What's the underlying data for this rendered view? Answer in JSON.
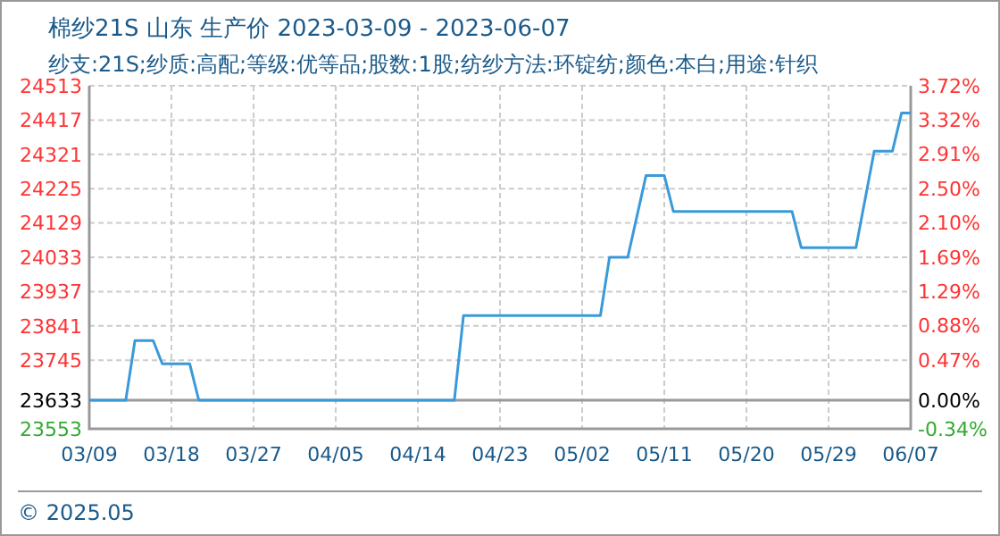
{
  "chart_data": {
    "type": "line",
    "title": "棉纱21S 山东 生产价 2023-03-09 - 2023-06-07",
    "subtitle": "纱支:21S;纱质:高配;等级:优等品;股数:1股;纺纱方法:环锭纺;颜色:本白;用途:针织",
    "x": [
      "2023-03-09",
      "2023-03-13",
      "2023-03-14",
      "2023-03-16",
      "2023-03-17",
      "2023-03-20",
      "2023-03-21",
      "2023-04-18",
      "2023-04-19",
      "2023-05-04",
      "2023-05-05",
      "2023-05-07",
      "2023-05-09",
      "2023-05-11",
      "2023-05-12",
      "2023-05-25",
      "2023-05-26",
      "2023-06-01",
      "2023-06-03",
      "2023-06-05",
      "2023-06-06",
      "2023-06-07"
    ],
    "series": [
      {
        "color": "#3a9ad9",
        "values": [
          23633,
          23633,
          23800,
          23800,
          23735,
          23735,
          23633,
          23633,
          23870,
          23870,
          24033,
          24033,
          24262,
          24262,
          24161,
          24161,
          24060,
          24060,
          24330,
          24330,
          24437,
          24437
        ]
      }
    ],
    "xlim": [
      "2023-03-09",
      "2023-06-07"
    ],
    "xticks": [
      {
        "value": "2023-03-09",
        "label": "03/09"
      },
      {
        "value": "2023-03-18",
        "label": "03/18"
      },
      {
        "value": "2023-03-27",
        "label": "03/27"
      },
      {
        "value": "2023-04-05",
        "label": "04/05"
      },
      {
        "value": "2023-04-14",
        "label": "04/14"
      },
      {
        "value": "2023-04-23",
        "label": "04/23"
      },
      {
        "value": "2023-05-02",
        "label": "05/02"
      },
      {
        "value": "2023-05-11",
        "label": "05/11"
      },
      {
        "value": "2023-05-20",
        "label": "05/20"
      },
      {
        "value": "2023-05-29",
        "label": "05/29"
      },
      {
        "value": "2023-06-07",
        "label": "06/07"
      }
    ],
    "ylim": [
      23553,
      24513
    ],
    "yticks": [
      23553,
      23633,
      23745,
      23841,
      23937,
      24033,
      24129,
      24225,
      24321,
      24417,
      24513
    ],
    "y2lim": [
      -0.34,
      3.72
    ],
    "y2ticks": [
      {
        "value": -0.34,
        "label": "-0.34%"
      },
      {
        "value": 0,
        "label": "0.00%"
      },
      {
        "value": 0.47,
        "label": "0.47%"
      },
      {
        "value": 0.88,
        "label": "0.88%"
      },
      {
        "value": 1.29,
        "label": "1.29%"
      },
      {
        "value": 1.69,
        "label": "1.69%"
      },
      {
        "value": 2.1,
        "label": "2.10%"
      },
      {
        "value": 2.5,
        "label": "2.50%"
      },
      {
        "value": 2.91,
        "label": "2.91%"
      },
      {
        "value": 3.32,
        "label": "3.32%"
      },
      {
        "value": 3.72,
        "label": "3.72%"
      }
    ],
    "ref_lines": [
      {
        "axis": "y",
        "value": 23633,
        "color": "#999999"
      }
    ],
    "grid": true,
    "marker": "none",
    "line_style": "solid",
    "annotations": [
      "© 2025.05"
    ]
  }
}
